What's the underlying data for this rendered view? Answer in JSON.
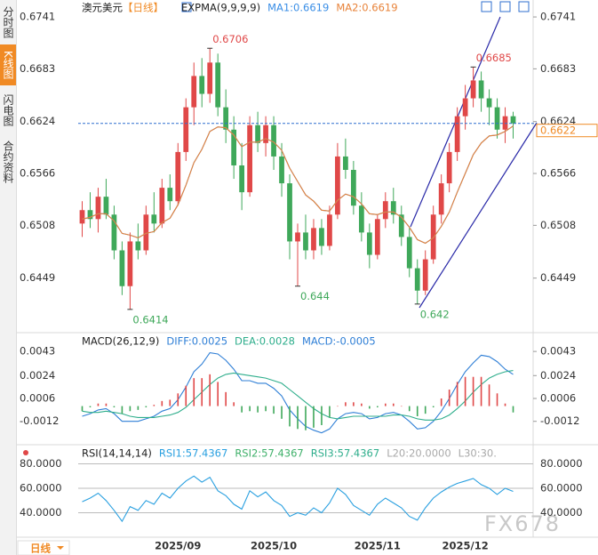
{
  "sidebar": [
    "分时图",
    "K线图",
    "闪电图",
    "合约资料"
  ],
  "period_tab": "日线",
  "watermark": "FX678",
  "chart_data": [
    {
      "type": "candlestick",
      "symbol": "澳元美元",
      "period": "【日线】",
      "indicator": "EXPMA(9,9,9,9)",
      "categories": [
        null,
        null,
        null,
        null,
        null,
        null,
        null,
        null,
        null,
        null,
        null,
        null,
        "2025/09",
        null,
        null,
        null,
        null,
        null,
        null,
        null,
        null,
        null,
        null,
        null,
        "2025/10",
        null,
        null,
        null,
        null,
        null,
        null,
        null,
        null,
        null,
        null,
        null,
        null,
        "2025/11",
        null,
        null,
        null,
        null,
        null,
        null,
        null,
        null,
        null,
        null,
        "2025/12",
        null,
        null,
        null,
        null,
        null,
        null
      ],
      "ohlc": {
        "open": [
          0.651,
          0.6525,
          0.6515,
          0.654,
          0.652,
          0.648,
          0.644,
          0.649,
          0.648,
          0.652,
          0.651,
          0.655,
          0.6535,
          0.659,
          0.664,
          0.6675,
          0.6655,
          0.669,
          0.664,
          0.6615,
          0.6575,
          0.6545,
          0.662,
          0.66,
          0.662,
          0.6585,
          0.6555,
          0.649,
          0.65,
          0.648,
          0.6505,
          0.6485,
          0.652,
          0.6585,
          0.657,
          0.653,
          0.65,
          0.6475,
          0.6515,
          0.6535,
          0.652,
          0.6495,
          0.646,
          0.6435,
          0.647,
          0.652,
          0.6555,
          0.659,
          0.663,
          0.665,
          0.667,
          0.665,
          0.664,
          0.6615,
          0.663
        ],
        "high": [
          0.6535,
          0.6545,
          0.655,
          0.656,
          0.653,
          0.649,
          0.65,
          0.651,
          0.653,
          0.6545,
          0.656,
          0.6565,
          0.66,
          0.665,
          0.669,
          0.6695,
          0.6706,
          0.67,
          0.666,
          0.663,
          0.66,
          0.663,
          0.6635,
          0.663,
          0.663,
          0.66,
          0.6565,
          0.651,
          0.652,
          0.6515,
          0.6515,
          0.653,
          0.66,
          0.6605,
          0.658,
          0.6545,
          0.651,
          0.652,
          0.6545,
          0.655,
          0.653,
          0.6505,
          0.647,
          0.648,
          0.653,
          0.6565,
          0.66,
          0.664,
          0.6665,
          0.6685,
          0.668,
          0.666,
          0.665,
          0.664,
          0.6635
        ],
        "low": [
          0.6495,
          0.6505,
          0.65,
          0.6515,
          0.647,
          0.643,
          0.6414,
          0.647,
          0.6475,
          0.65,
          0.6505,
          0.6525,
          0.653,
          0.658,
          0.662,
          0.664,
          0.6645,
          0.663,
          0.66,
          0.656,
          0.6525,
          0.654,
          0.659,
          0.6585,
          0.657,
          0.654,
          0.647,
          0.644,
          0.647,
          0.647,
          0.6475,
          0.648,
          0.6515,
          0.656,
          0.652,
          0.649,
          0.646,
          0.647,
          0.6505,
          0.651,
          0.6485,
          0.645,
          0.642,
          0.643,
          0.6465,
          0.651,
          0.6545,
          0.658,
          0.6615,
          0.664,
          0.6635,
          0.662,
          0.6605,
          0.66,
          0.6605
        ],
        "close": [
          0.6525,
          0.6515,
          0.654,
          0.652,
          0.648,
          0.644,
          0.649,
          0.648,
          0.652,
          0.651,
          0.655,
          0.6535,
          0.659,
          0.664,
          0.6675,
          0.6655,
          0.669,
          0.664,
          0.6615,
          0.6575,
          0.6545,
          0.662,
          0.66,
          0.662,
          0.6585,
          0.6555,
          0.649,
          0.65,
          0.648,
          0.6505,
          0.6485,
          0.652,
          0.6585,
          0.657,
          0.653,
          0.65,
          0.6475,
          0.6515,
          0.6535,
          0.652,
          0.6495,
          0.646,
          0.6435,
          0.647,
          0.652,
          0.6555,
          0.659,
          0.663,
          0.665,
          0.667,
          0.665,
          0.664,
          0.6615,
          0.663,
          0.6622
        ]
      },
      "up_color": "#e04848",
      "down_color": "#3fa85a",
      "series": [
        {
          "name": "MA1:0.6619",
          "color": "#3a8ee6",
          "values": [
            0.6515,
            0.6517,
            0.6521,
            0.6521,
            0.6513,
            0.6499,
            0.6497,
            0.6494,
            0.6499,
            0.6501,
            0.6511,
            0.6516,
            0.6531,
            0.6553,
            0.6578,
            0.6593,
            0.6613,
            0.6618,
            0.6617,
            0.6609,
            0.6596,
            0.6601,
            0.6601,
            0.6605,
            0.6601,
            0.6592,
            0.6572,
            0.6557,
            0.6542,
            0.6535,
            0.6525,
            0.6524,
            0.6536,
            0.6543,
            0.654,
            0.6532,
            0.6521,
            0.652,
            0.6523,
            0.6523,
            0.6517,
            0.6506,
            0.6492,
            0.6488,
            0.6494,
            0.6507,
            0.6523,
            0.6545,
            0.6566,
            0.6587,
            0.66,
            0.6608,
            0.6609,
            0.6613,
            0.6619
          ]
        },
        {
          "name": "MA2:0.6619",
          "color": "#e8833a",
          "values": [
            0.6515,
            0.6517,
            0.6521,
            0.6521,
            0.6513,
            0.6499,
            0.6497,
            0.6494,
            0.6499,
            0.6501,
            0.6511,
            0.6516,
            0.6531,
            0.6553,
            0.6578,
            0.6593,
            0.6613,
            0.6618,
            0.6617,
            0.6609,
            0.6596,
            0.6601,
            0.6601,
            0.6605,
            0.6601,
            0.6592,
            0.6572,
            0.6557,
            0.6542,
            0.6535,
            0.6525,
            0.6524,
            0.6536,
            0.6543,
            0.654,
            0.6532,
            0.6521,
            0.652,
            0.6523,
            0.6523,
            0.6517,
            0.6506,
            0.6492,
            0.6488,
            0.6494,
            0.6507,
            0.6523,
            0.6545,
            0.6566,
            0.6587,
            0.66,
            0.6608,
            0.6609,
            0.6613,
            0.6619
          ]
        }
      ],
      "marked_extremes": [
        0.6706,
        0.6414,
        0.644,
        0.642,
        0.6685
      ],
      "last_price": 0.6622,
      "ylim": [
        0.639,
        0.6752
      ],
      "yticks": [
        0.6741,
        0.6683,
        0.6624,
        0.6566,
        0.6508,
        0.6449
      ]
    },
    {
      "type": "macd",
      "indicator": "MACD(26,12,9)",
      "series": [
        {
          "name": "DIFF:0.0025",
          "color": "#2f7fd6",
          "values": [
            -0.0008,
            -0.0006,
            -0.0003,
            -0.0002,
            -0.0006,
            -0.0012,
            -0.0012,
            -0.0012,
            -0.001,
            -0.0008,
            -0.0004,
            -0.0002,
            0.0005,
            0.0015,
            0.0027,
            0.0033,
            0.0042,
            0.0041,
            0.0036,
            0.0029,
            0.002,
            0.002,
            0.0018,
            0.0018,
            0.0014,
            0.0008,
            -0.0003,
            -0.001,
            -0.0016,
            -0.0019,
            -0.0021,
            -0.0018,
            -0.001,
            -0.0006,
            -0.0005,
            -0.0006,
            -0.001,
            -0.0009,
            -0.0006,
            -0.0005,
            -0.0007,
            -0.0012,
            -0.0018,
            -0.0017,
            -0.0012,
            -0.0004,
            0.0006,
            0.0017,
            0.0027,
            0.0034,
            0.004,
            0.0039,
            0.0035,
            0.0029,
            0.0025
          ]
        },
        {
          "name": "DEA:0.0028",
          "color": "#2fae8c",
          "values": [
            -0.0004,
            -0.0005,
            -0.0005,
            -0.0004,
            -0.0005,
            -0.0006,
            -0.0008,
            -0.0009,
            -0.0009,
            -0.0009,
            -0.0008,
            -0.0007,
            -0.0005,
            -0.0001,
            0.0005,
            0.0011,
            0.0017,
            0.0022,
            0.0025,
            0.0026,
            0.0025,
            0.0024,
            0.0023,
            0.0022,
            0.002,
            0.0018,
            0.0013,
            0.0008,
            0.0003,
            -0.0002,
            -0.0006,
            -0.0009,
            -0.001,
            -0.0009,
            -0.0008,
            -0.0008,
            -0.0008,
            -0.0008,
            -0.0008,
            -0.0007,
            -0.0007,
            -0.0008,
            -0.001,
            -0.0011,
            -0.0011,
            -0.001,
            -0.0007,
            -0.0002,
            0.0004,
            0.0011,
            0.0017,
            0.0022,
            0.0025,
            0.0027,
            0.0028
          ]
        },
        {
          "name": "MACD:-0.0005",
          "color": "#2f7fd6",
          "values": [
            -0.0004,
            -0.0001,
            0.0002,
            0.0002,
            -0.0001,
            -0.0006,
            -0.0004,
            -0.0003,
            -0.0001,
            0.0001,
            0.0004,
            0.0005,
            0.001,
            0.0016,
            0.0022,
            0.0022,
            0.0025,
            0.0019,
            0.0011,
            0.0003,
            -0.0005,
            -0.0004,
            -0.0005,
            -0.0004,
            -0.0006,
            -0.001,
            -0.0016,
            -0.0018,
            -0.0019,
            -0.0017,
            -0.0015,
            -0.0009,
            0.0,
            0.0003,
            0.0003,
            0.0002,
            -0.0002,
            -0.0001,
            0.0002,
            0.0002,
            0.0,
            -0.0004,
            -0.0008,
            -0.0006,
            -0.0001,
            0.0006,
            0.0013,
            0.0019,
            0.0023,
            0.0023,
            0.0023,
            0.0017,
            0.001,
            0.0002,
            -0.0005
          ]
        }
      ],
      "ylim": [
        -0.0029,
        0.0055
      ],
      "yticks": [
        0.0043,
        0.0024,
        0.0006,
        -0.0012
      ]
    },
    {
      "type": "line",
      "indicator": "RSI(14,14,14)",
      "series": [
        {
          "name": "RSI1:57.4367",
          "color": "#2aa0e0",
          "values": [
            49,
            52,
            56,
            50,
            42,
            33,
            45,
            42,
            50,
            47,
            56,
            52,
            60,
            66,
            70,
            65,
            69,
            58,
            54,
            47,
            43,
            58,
            53,
            57,
            50,
            46,
            37,
            40,
            38,
            44,
            40,
            48,
            60,
            55,
            46,
            42,
            38,
            47,
            52,
            48,
            44,
            37,
            34,
            44,
            52,
            57,
            61,
            64,
            66,
            68,
            63,
            60,
            55,
            60,
            57.4367
          ]
        }
      ],
      "legend_extra": [
        {
          "name": "RSI2:57.4367",
          "color": "#3fb06a"
        },
        {
          "name": "RSI3:57.4367",
          "color": "#2fae8c"
        },
        {
          "name": "L20:20.0000",
          "color": "#aaaaaa"
        },
        {
          "name": "L30:30.",
          "color": "#aaaaaa"
        }
      ],
      "ylim": [
        20,
        92
      ],
      "yticks": [
        {
          "value": 80,
          "label": "80.0000"
        },
        {
          "value": 60,
          "label": "60.0000"
        },
        {
          "value": 40,
          "label": "40.0000"
        }
      ],
      "grid": true
    }
  ]
}
